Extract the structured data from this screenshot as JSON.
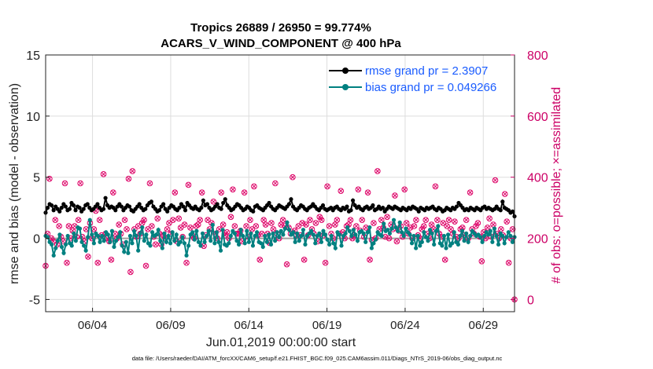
{
  "chart_data": {
    "type": "line",
    "title_line1": "Tropics 26889 / 26950 = 99.774%",
    "title_line2": "ACARS_V_WIND_COMPONENT @ 400 hPa",
    "xlabel": "Jun.01,2019 00:00:00 start",
    "ylabel_left": "rmse and bias (model - observation)",
    "ylabel_right": "# of obs: o=possible; ×=assimilated",
    "footnote": "data file: /Users/raeder/DAI/ATM_forcXX/CAM6_setup/f.e21.FHIST_BGC.f09_025.CAM6assim.011/Diags_NTrS_2019-06/obs_diag_output.nc",
    "x_ticks": [
      "06/04",
      "06/09",
      "06/14",
      "06/19",
      "06/24",
      "06/29"
    ],
    "x_tick_days": [
      4,
      9,
      14,
      19,
      24,
      29
    ],
    "xlim_days": [
      1,
      31
    ],
    "ylim_left": [
      -6,
      15
    ],
    "left_ticks": [
      -5,
      0,
      5,
      10,
      15
    ],
    "ylim_right": [
      -40,
      800
    ],
    "right_ticks": [
      0,
      200,
      400,
      600,
      800
    ],
    "grid": true,
    "legend_position": "top-right",
    "colors": {
      "rmse": "#000000",
      "bias": "#008080",
      "obs": "#dd0066",
      "zero": "#a0a0a0",
      "right_axis": "#cc0066"
    },
    "series": [
      {
        "name": "rmse grand pr = 2.3907",
        "axis": "left",
        "values": [
          2.1,
          2.5,
          2.8,
          2.7,
          2.3,
          2.6,
          2.4,
          2.2,
          2.5,
          2.8,
          2.6,
          2.3,
          2.4,
          2.9,
          2.7,
          2.3,
          2.6,
          2.5,
          2.2,
          2.4,
          2.7,
          2.8,
          2.5,
          2.3,
          2.4,
          2.6,
          2.8,
          2.5,
          2.3,
          2.4,
          3.3,
          2.7,
          2.5,
          2.6,
          2.5,
          2.3,
          2.6,
          2.8,
          2.6,
          2.3,
          2.5,
          2.7,
          2.6,
          2.3,
          2.2,
          2.4,
          2.6,
          2.8,
          2.5,
          2.3,
          2.4,
          2.7,
          2.9,
          3.0,
          2.6,
          2.4,
          2.2,
          2.3,
          2.6,
          2.8,
          2.4,
          2.2,
          2.5,
          2.7,
          2.6,
          2.4,
          2.3,
          2.5,
          2.8,
          2.6,
          2.3,
          2.9,
          2.7,
          2.5,
          2.4,
          2.6,
          2.4,
          2.3,
          2.5,
          3.1,
          2.7,
          2.8,
          2.5,
          2.3,
          2.4,
          2.6,
          2.8,
          2.5,
          2.4,
          2.9,
          3.2,
          2.7,
          2.5,
          2.3,
          2.4,
          2.6,
          2.8,
          2.7,
          2.5,
          2.3,
          2.4,
          2.6,
          2.5,
          2.3,
          2.2,
          2.6,
          2.7,
          2.5,
          2.4,
          2.3,
          2.5,
          2.7,
          2.9,
          2.6,
          2.4,
          2.3,
          2.5,
          2.7,
          2.6,
          2.5,
          2.4,
          2.6,
          2.8,
          3.2,
          2.6,
          2.4,
          2.3,
          2.5,
          2.7,
          2.6,
          2.4,
          2.3,
          2.5,
          2.6,
          2.8,
          2.6,
          2.4,
          2.3,
          2.5,
          2.7,
          2.4,
          2.3,
          2.4,
          2.5,
          2.3,
          2.5,
          2.6,
          2.4,
          2.3,
          2.5,
          2.4,
          2.6,
          2.2,
          2.3,
          3.1,
          2.7,
          2.5,
          2.6,
          2.4,
          2.3,
          2.5,
          2.6,
          2.4,
          2.5,
          2.7,
          2.3,
          2.4,
          2.6,
          2.4,
          2.5,
          2.2,
          2.4,
          2.6,
          2.5,
          2.4,
          2.6,
          2.5,
          2.4,
          2.3,
          2.5,
          2.4,
          2.3,
          2.5,
          2.4,
          2.6,
          2.5,
          2.4,
          2.2,
          2.5,
          2.4,
          2.3,
          2.5,
          2.4,
          2.5,
          2.6,
          2.4,
          2.3,
          2.5,
          2.4,
          2.2,
          2.3,
          2.5,
          2.4,
          2.3,
          2.5,
          2.4,
          2.6,
          2.9,
          2.7,
          2.5,
          2.3,
          2.4,
          2.3,
          2.5,
          2.4,
          2.3,
          2.5,
          2.4,
          2.3,
          2.5,
          2.6,
          2.4,
          2.5,
          2.4,
          2.3,
          2.4,
          2.6,
          2.4,
          2.3,
          3.0,
          2.5,
          2.4,
          2.3,
          2.1,
          2.2,
          1.8
        ]
      },
      {
        "name": "bias grand pr = 0.049266",
        "axis": "left",
        "values": [
          0.2,
          0.1,
          -0.3,
          -0.5,
          -1.4,
          -0.8,
          -0.2,
          0.3,
          -0.7,
          -1.2,
          -0.5,
          0.2,
          -0.4,
          -0.6,
          0.4,
          -0.2,
          0.9,
          0.8,
          -0.3,
          -0.6,
          -1.0,
          0.1,
          1.5,
          0.3,
          -0.4,
          0.4,
          0.2,
          -0.3,
          0.2,
          -0.2,
          0.5,
          0.3,
          -0.3,
          0.6,
          -0.7,
          -0.2,
          0.1,
          0.5,
          -0.6,
          -1.1,
          -0.3,
          -1.2,
          0.2,
          -0.4,
          0.6,
          0.2,
          -1.0,
          0.4,
          0.9,
          -0.2,
          0.3,
          -0.4,
          -0.6,
          0.5,
          0.2,
          0.3,
          0.7,
          -0.2,
          -0.8,
          0.4,
          -0.3,
          0.2,
          -0.4,
          0.5,
          -0.2,
          0.3,
          -0.5,
          -0.3,
          0.1,
          -0.4,
          -1.4,
          -0.6,
          0.3,
          0.5,
          -0.1,
          0.6,
          -0.3,
          -0.6,
          0.4,
          -0.3,
          0.2,
          0.6,
          -0.2,
          1.1,
          -0.4,
          0.5,
          -0.3,
          -1.0,
          0.7,
          -0.5,
          -0.6,
          -0.4,
          0.2,
          0.6,
          0.4,
          -0.2,
          -0.5,
          0.7,
          0.2,
          -0.4,
          0.6,
          -0.3,
          0.4,
          -0.6,
          0.2,
          0.5,
          -0.3,
          -0.4,
          -0.7,
          0.2,
          -0.3,
          0.3,
          -0.5,
          0.4,
          -0.2,
          0.5,
          0.1,
          0.6,
          0.3,
          0.8,
          1.3,
          0.7,
          0.3,
          0.5,
          -0.3,
          0.4,
          -0.2,
          0.2,
          0.7,
          -0.5,
          0.2,
          0.4,
          0.6,
          0.3,
          -0.4,
          0.2,
          0.4,
          -0.3,
          0.6,
          0.3,
          -0.1,
          -0.5,
          0.2,
          -0.4,
          -0.8,
          0.5,
          0.3,
          -0.6,
          0.2,
          0.4,
          0.9,
          0.6,
          0.2,
          0.7,
          0.3,
          -0.2,
          0.5,
          0.6,
          0.4,
          -0.3,
          0.5,
          0.9,
          -0.8,
          -0.4,
          -0.1,
          0.5,
          0.3,
          0.2,
          1.2,
          0.6,
          0.7,
          0.4,
          0.8,
          1.5,
          0.9,
          0.6,
          1.3,
          0.5,
          0.2,
          0.8,
          0.5,
          0.3,
          -0.4,
          0.2,
          -0.8,
          0.2,
          -0.6,
          -0.3,
          0.5,
          0.1,
          -0.2,
          0.7,
          0.4,
          -0.5,
          0.6,
          1.0,
          -0.4,
          -0.6,
          0.2,
          -0.8,
          0.3,
          -0.6,
          -0.4,
          0.5,
          -0.3,
          -0.5,
          0.2,
          0.6,
          -0.2,
          0.4,
          -0.3,
          0.2,
          0.6,
          0.4,
          0.2,
          0.3,
          0.1,
          -0.3,
          0.2,
          0.5,
          0.3,
          0.6,
          -0.3,
          0.8,
          0.2,
          -0.5,
          0.4,
          0.2,
          -0.4,
          0.1,
          0.5,
          0.2,
          -0.3,
          0.1
        ]
      },
      {
        "name": "obs possible",
        "axis": "right",
        "values": [
          110,
          215,
          395,
          200,
          190,
          260,
          180,
          240,
          205,
          190,
          380,
          120,
          240,
          200,
          225,
          240,
          205,
          260,
          380,
          205,
          190,
          230,
          140,
          250,
          200,
          230,
          290,
          120,
          260,
          210,
          410,
          215,
          200,
          190,
          130,
          350,
          215,
          200,
          245,
          215,
          180,
          260,
          230,
          395,
          90,
          420,
          230,
          205,
          240,
          215,
          250,
          260,
          110,
          230,
          380,
          240,
          205,
          180,
          265,
          215,
          180,
          210,
          200,
          230,
          250,
          215,
          260,
          350,
          190,
          265,
          235,
          205,
          245,
          120,
          375,
          235,
          210,
          200,
          240,
          245,
          260,
          350,
          175,
          210,
          260,
          230,
          250,
          320,
          215,
          200,
          230,
          350,
          245,
          210,
          220,
          200,
          270,
          360,
          240,
          215,
          215,
          225,
          190,
          350,
          240,
          205,
          260,
          230,
          370,
          240,
          210,
          130,
          215,
          260,
          245,
          215,
          185,
          250,
          230,
          380,
          215,
          200,
          245,
          260,
          240,
          115,
          235,
          215,
          400,
          225,
          210,
          240,
          210,
          250,
          130,
          245,
          210,
          260,
          230,
          215,
          250,
          190,
          270,
          260,
          210,
          120,
          370,
          240,
          215,
          200,
          245,
          260,
          215,
          355,
          220,
          200,
          240,
          245,
          260,
          200,
          210,
          240,
          360,
          225,
          260,
          205,
          235,
          350,
          130,
          195,
          250,
          200,
          420,
          230,
          260,
          235,
          205,
          270,
          200,
          245,
          230,
          340,
          190,
          225,
          240,
          205,
          360,
          250,
          215,
          235,
          200,
          240,
          260,
          210,
          200,
          230,
          240,
          260,
          215,
          200,
          245,
          230,
          370,
          260,
          215,
          205,
          250,
          130,
          240,
          260,
          230,
          215,
          255,
          205,
          200,
          230,
          235,
          210,
          260,
          200,
          350,
          230,
          215,
          240,
          250,
          205,
          125,
          220,
          200,
          235,
          265,
          205,
          245,
          390,
          215,
          200,
          230,
          210,
          345,
          255,
          120,
          200,
          230,
          0
        ]
      }
    ]
  }
}
